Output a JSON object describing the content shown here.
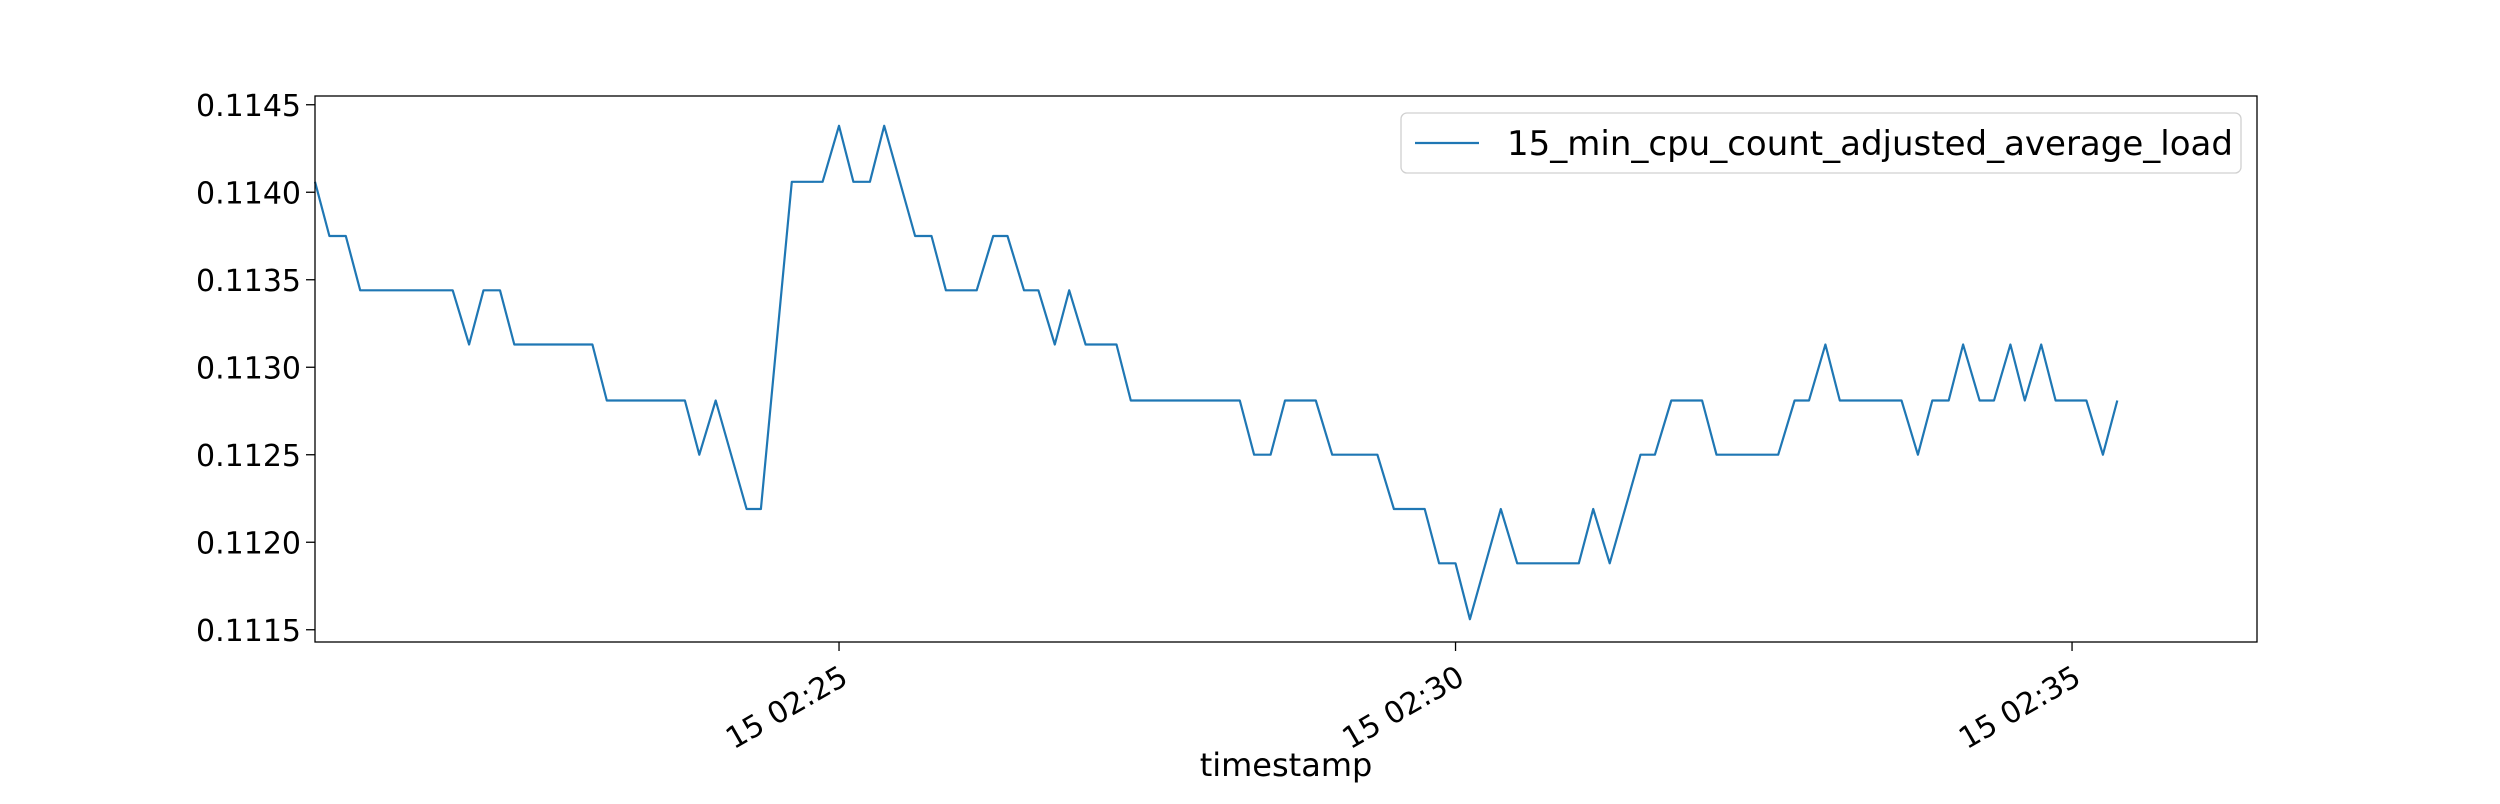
{
  "chart_data": {
    "type": "line",
    "title": "",
    "xlabel": "timestamp",
    "ylabel": "",
    "x_unit": "minutes",
    "x_range": [
      "15 02:20:45",
      "15 02:36:30"
    ],
    "x_ticks": [
      {
        "label": "15 02:25",
        "time": "15 02:25"
      },
      {
        "label": "15 02:30",
        "time": "15 02:30"
      },
      {
        "label": "15 02:35",
        "time": "15 02:35"
      }
    ],
    "ylim": [
      0.11143,
      0.11455
    ],
    "y_ticks": [
      0.1115,
      0.112,
      0.1125,
      0.113,
      0.1135,
      0.114,
      0.1145
    ],
    "y_tick_labels": [
      "0.1115",
      "0.1120",
      "0.1125",
      "0.1130",
      "0.1135",
      "0.1140",
      "0.1145"
    ],
    "grid": false,
    "legend_position": "top-right",
    "series": [
      {
        "name": "15_min_cpu_count_adjusted_average_load",
        "color": "#1f77b4",
        "points": [
          [
            "15 02:20:45",
            0.11406
          ],
          [
            "15 02:20:52",
            0.11375
          ],
          [
            "15 02:21:00",
            0.11375
          ],
          [
            "15 02:21:07",
            0.11344
          ],
          [
            "15 02:21:15",
            0.11344
          ],
          [
            "15 02:21:52",
            0.11344
          ],
          [
            "15 02:22:00",
            0.11313
          ],
          [
            "15 02:22:07",
            0.11344
          ],
          [
            "15 02:22:15",
            0.11344
          ],
          [
            "15 02:22:22",
            0.11313
          ],
          [
            "15 02:22:30",
            0.11313
          ],
          [
            "15 02:23:00",
            0.11313
          ],
          [
            "15 02:23:07",
            0.11281
          ],
          [
            "15 02:23:15",
            0.11281
          ],
          [
            "15 02:23:45",
            0.11281
          ],
          [
            "15 02:23:52",
            0.1125
          ],
          [
            "15 02:24:00",
            0.11281
          ],
          [
            "15 02:24:15",
            0.11219
          ],
          [
            "15 02:24:22",
            0.11219
          ],
          [
            "15 02:24:37",
            0.11406
          ],
          [
            "15 02:24:52",
            0.11406
          ],
          [
            "15 02:25:00",
            0.11438
          ],
          [
            "15 02:25:07",
            0.11406
          ],
          [
            "15 02:25:15",
            0.11406
          ],
          [
            "15 02:25:22",
            0.11438
          ],
          [
            "15 02:25:37",
            0.11375
          ],
          [
            "15 02:25:45",
            0.11375
          ],
          [
            "15 02:25:52",
            0.11344
          ],
          [
            "15 02:26:00",
            0.11344
          ],
          [
            "15 02:26:07",
            0.11344
          ],
          [
            "15 02:26:15",
            0.11375
          ],
          [
            "15 02:26:22",
            0.11375
          ],
          [
            "15 02:26:30",
            0.11344
          ],
          [
            "15 02:26:37",
            0.11344
          ],
          [
            "15 02:26:45",
            0.11313
          ],
          [
            "15 02:26:52",
            0.11344
          ],
          [
            "15 02:27:00",
            0.11313
          ],
          [
            "15 02:27:07",
            0.11313
          ],
          [
            "15 02:27:15",
            0.11313
          ],
          [
            "15 02:27:22",
            0.11281
          ],
          [
            "15 02:27:30",
            0.11281
          ],
          [
            "15 02:28:00",
            0.11281
          ],
          [
            "15 02:28:15",
            0.11281
          ],
          [
            "15 02:28:22",
            0.1125
          ],
          [
            "15 02:28:30",
            0.1125
          ],
          [
            "15 02:28:37",
            0.11281
          ],
          [
            "15 02:28:45",
            0.11281
          ],
          [
            "15 02:28:52",
            0.11281
          ],
          [
            "15 02:29:00",
            0.1125
          ],
          [
            "15 02:29:07",
            0.1125
          ],
          [
            "15 02:29:15",
            0.1125
          ],
          [
            "15 02:29:22",
            0.1125
          ],
          [
            "15 02:29:30",
            0.11219
          ],
          [
            "15 02:29:45",
            0.11219
          ],
          [
            "15 02:29:52",
            0.11188
          ],
          [
            "15 02:30:00",
            0.11188
          ],
          [
            "15 02:30:07",
            0.11156
          ],
          [
            "15 02:30:22",
            0.11219
          ],
          [
            "15 02:30:30",
            0.11188
          ],
          [
            "15 02:30:37",
            0.11188
          ],
          [
            "15 02:31:00",
            0.11188
          ],
          [
            "15 02:31:07",
            0.11219
          ],
          [
            "15 02:31:15",
            0.11188
          ],
          [
            "15 02:31:30",
            0.1125
          ],
          [
            "15 02:31:37",
            0.1125
          ],
          [
            "15 02:31:45",
            0.11281
          ],
          [
            "15 02:31:52",
            0.11281
          ],
          [
            "15 02:32:00",
            0.11281
          ],
          [
            "15 02:32:07",
            0.1125
          ],
          [
            "15 02:32:15",
            0.1125
          ],
          [
            "15 02:32:37",
            0.1125
          ],
          [
            "15 02:32:45",
            0.11281
          ],
          [
            "15 02:32:52",
            0.11281
          ],
          [
            "15 02:33:00",
            0.11313
          ],
          [
            "15 02:33:07",
            0.11281
          ],
          [
            "15 02:33:15",
            0.11281
          ],
          [
            "15 02:33:37",
            0.11281
          ],
          [
            "15 02:33:45",
            0.1125
          ],
          [
            "15 02:33:52",
            0.11281
          ],
          [
            "15 02:34:00",
            0.11281
          ],
          [
            "15 02:34:07",
            0.11313
          ],
          [
            "15 02:34:15",
            0.11281
          ],
          [
            "15 02:34:22",
            0.11281
          ],
          [
            "15 02:34:30",
            0.11313
          ],
          [
            "15 02:34:37",
            0.11281
          ],
          [
            "15 02:34:45",
            0.11313
          ],
          [
            "15 02:34:52",
            0.11281
          ],
          [
            "15 02:35:00",
            0.11281
          ],
          [
            "15 02:35:07",
            0.11281
          ],
          [
            "15 02:35:15",
            0.1125
          ],
          [
            "15 02:35:22",
            0.11281
          ]
        ]
      }
    ]
  }
}
